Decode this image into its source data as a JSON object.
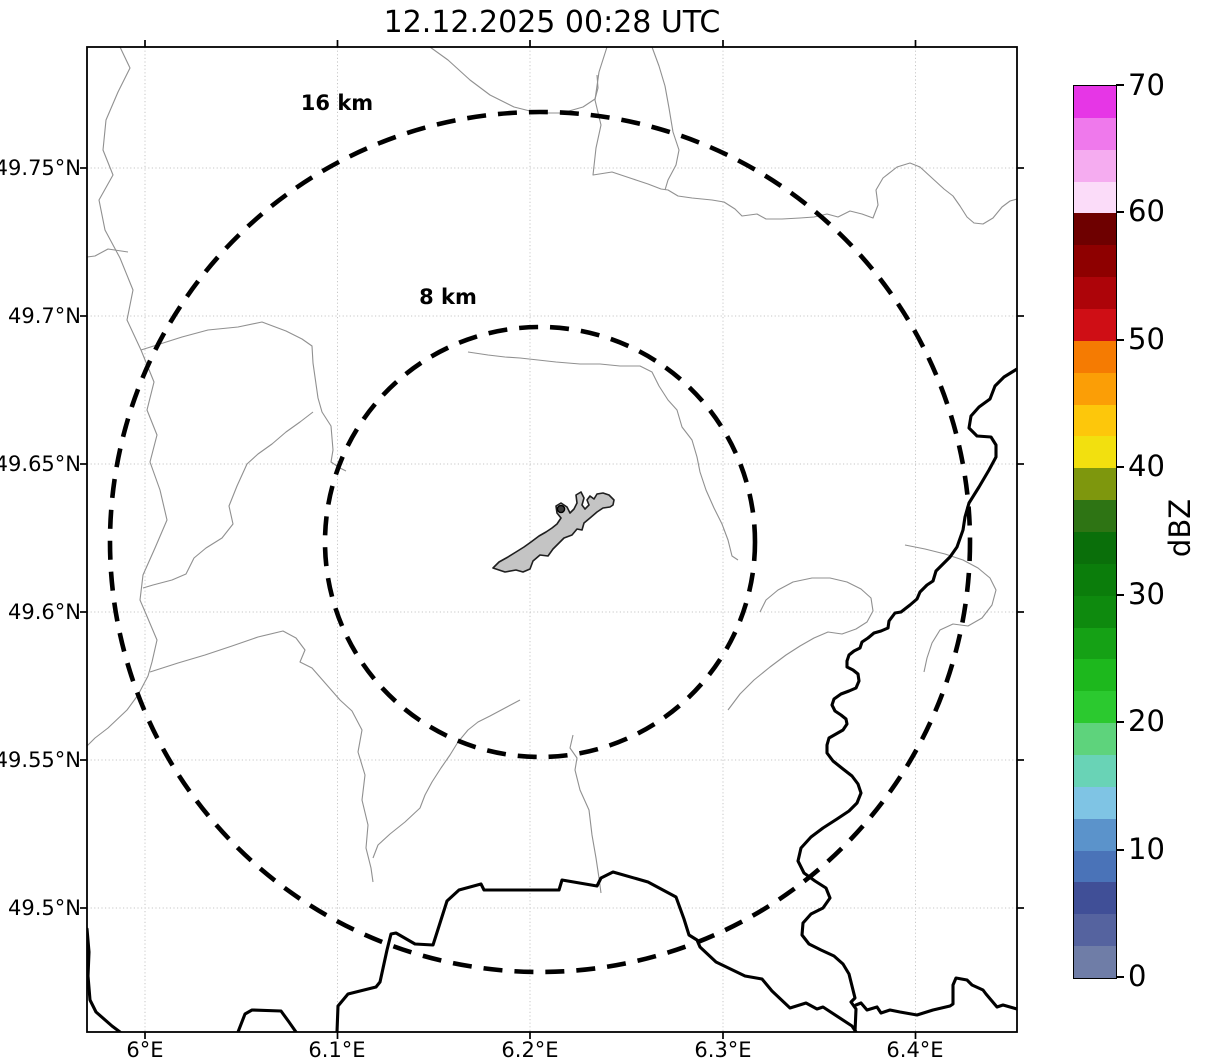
{
  "title": "12.12.2025 00:28 UTC",
  "map": {
    "range_rings": {
      "outer": "16 km",
      "inner": "8 km"
    },
    "x_ticks": [
      "6°E",
      "6.1°E",
      "6.2°E",
      "6.3°E",
      "6.4°E"
    ],
    "y_ticks": [
      "49.75°N",
      "49.7°N",
      "49.65°N",
      "49.6°N",
      "49.55°N",
      "49.5°N"
    ]
  },
  "colorbar": {
    "label": "dBZ",
    "ticks": [
      "70",
      "60",
      "50",
      "40",
      "30",
      "20",
      "10",
      "0"
    ],
    "unit_min": 0,
    "unit_max": 70,
    "colors_bottom_to_top": [
      "#6f7da7",
      "#55639f",
      "#404f97",
      "#4a73b8",
      "#5b93cb",
      "#7fc4e4",
      "#69d3b6",
      "#5ed37c",
      "#2bc92f",
      "#1db81d",
      "#15a115",
      "#0e8a0e",
      "#0b7d0b",
      "#0a6f0a",
      "#2e7414",
      "#7e970d",
      "#f2e00f",
      "#fdc70b",
      "#fb9e06",
      "#f57b02",
      "#cf0e15",
      "#ad0409",
      "#8e0000",
      "#6e0000",
      "#fbdcf9",
      "#f5acf0",
      "#ef79ec",
      "#e636e6"
    ]
  }
}
